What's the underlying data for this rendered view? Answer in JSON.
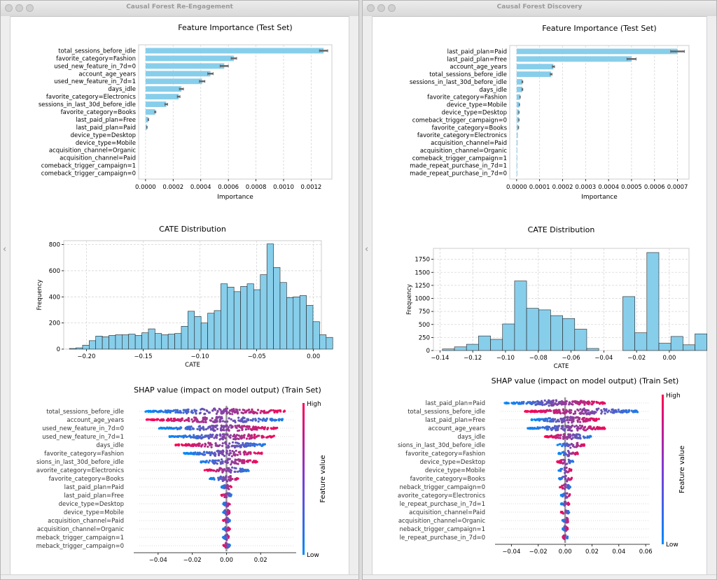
{
  "windows": [
    {
      "title": "Causal Forest Re-Engagement",
      "chart_data": [
        {
          "type": "bar",
          "orientation": "horizontal",
          "title": "Feature Importance (Test Set)",
          "xlabel": "Importance",
          "categories": [
            "total_sessions_before_idle",
            "favorite_category=Fashion",
            "used_new_feature_in_7d=0",
            "account_age_years",
            "used_new_feature_in_7d=1",
            "days_idle",
            "favorite_category=Electronics",
            "sessions_in_last_30d_before_idle",
            "favorite_category=Books",
            "last_paid_plan=Free",
            "last_paid_plan=Paid",
            "device_type=Desktop",
            "device_type=Mobile",
            "acquisition_channel=Organic",
            "acquisition_channel=Paid",
            "comeback_trigger_campaign=1",
            "comeback_trigger_campaign=0"
          ],
          "values": [
            0.00129,
            0.00064,
            0.00057,
            0.00047,
            0.00041,
            0.00026,
            0.00024,
            0.00015,
            7e-05,
            2e-05,
            1e-05,
            0,
            0,
            0,
            0,
            0,
            0
          ],
          "errors": [
            3e-05,
            2e-05,
            3e-05,
            2e-05,
            2e-05,
            1.5e-05,
            1e-05,
            1e-05,
            5e-06,
            3e-06,
            2e-06,
            0,
            0,
            0,
            0,
            0,
            0
          ],
          "xlim": [
            -5e-05,
            0.00135
          ],
          "xticks": [
            "0.0000",
            "0.0002",
            "0.0004",
            "0.0006",
            "0.0008",
            "0.0010",
            "0.0012"
          ],
          "xtick_values": [
            0,
            0.0002,
            0.0004,
            0.0006,
            0.0008,
            0.001,
            0.0012
          ],
          "grid": true,
          "color": "#87ceeb"
        },
        {
          "type": "histogram",
          "title": "CATE Distribution",
          "xlabel": "CATE",
          "ylabel": "Frequency",
          "bin_start": -0.215,
          "bin_width": 0.0058,
          "counts": [
            5,
            10,
            30,
            65,
            100,
            95,
            105,
            110,
            110,
            115,
            105,
            125,
            155,
            120,
            110,
            115,
            120,
            175,
            290,
            250,
            200,
            275,
            295,
            500,
            475,
            440,
            480,
            500,
            455,
            570,
            805,
            625,
            510,
            395,
            400,
            410,
            335,
            210,
            110,
            90
          ],
          "xlim": [
            -0.22,
            0.007
          ],
          "ylim": [
            0,
            830
          ],
          "xticks": [
            "−0.20",
            "−0.15",
            "−0.10",
            "−0.05",
            "0.00"
          ],
          "xtick_values": [
            -0.2,
            -0.15,
            -0.1,
            -0.05,
            0
          ],
          "yticks": [
            "0",
            "200",
            "400",
            "600",
            "800"
          ],
          "ytick_values": [
            0,
            200,
            400,
            600,
            800
          ],
          "grid": true,
          "color": "#87ceeb"
        },
        {
          "type": "scatter",
          "subtype": "beeswarm",
          "title": "SHAP value (impact on model output) (Train Set)",
          "features": [
            "total_sessions_before_idle",
            "account_age_years",
            "used_new_feature_in_7d=0",
            "used_new_feature_in_7d=1",
            "days_idle",
            "favorite_category=Fashion",
            "sions_in_last_30d_before_idle",
            "avorite_category=Electronics",
            "favorite_category=Books",
            "last_paid_plan=Paid",
            "last_paid_plan=Free",
            "device_type=Desktop",
            "device_type=Mobile",
            "acquisition_channel=Paid",
            "acquisition_channel=Organic",
            "meback_trigger_campaign=1",
            "meback_trigger_campaign=0"
          ],
          "ranges": [
            [
              -0.048,
              0.035
            ],
            [
              -0.047,
              0.033
            ],
            [
              -0.04,
              0.03
            ],
            [
              -0.034,
              0.028
            ],
            [
              -0.03,
              0.023
            ],
            [
              -0.025,
              0.022
            ],
            [
              -0.017,
              0.018
            ],
            [
              -0.013,
              0.013
            ],
            [
              -0.01,
              0.008
            ],
            [
              -0.003,
              0.003
            ],
            [
              -0.003,
              0.003
            ],
            [
              -0.002,
              0.002
            ],
            [
              -0.002,
              0.002
            ],
            [
              -0.002,
              0.002
            ],
            [
              -0.002,
              0.002
            ],
            [
              -0.002,
              0.002
            ],
            [
              -0.002,
              0.002
            ]
          ],
          "xlim": [
            -0.051,
            0.04
          ],
          "xticks": [
            "−0.04",
            "−0.02",
            "0.00",
            "0.02"
          ],
          "xtick_values": [
            -0.04,
            -0.02,
            0,
            0.02
          ],
          "colorbar": {
            "label": "Feature value",
            "high": "High",
            "low": "Low",
            "colors": [
              "#008bfb",
              "#ff0051"
            ]
          }
        }
      ]
    },
    {
      "title": "Causal Forest Discovery",
      "chart_data": [
        {
          "type": "bar",
          "orientation": "horizontal",
          "title": "Feature Importance (Test Set)",
          "xlabel": "Importance",
          "categories": [
            "last_paid_plan=Paid",
            "last_paid_plan=Free",
            "account_age_years",
            "total_sessions_before_idle",
            "sessions_in_last_30d_before_idle",
            "days_idle",
            "favorite_category=Fashion",
            "device_type=Mobile",
            "device_type=Desktop",
            "comeback_trigger_campaign=0",
            "favorite_category=Books",
            "favorite_category=Electronics",
            "acquisition_channel=Paid",
            "acquisition_channel=Organic",
            "comeback_trigger_campaign=1",
            "made_repeat_purchase_in_7d=1",
            "made_repeat_purchase_in_7d=0"
          ],
          "values": [
            0.0007,
            0.0005,
            0.00016,
            0.00015,
            2.5e-05,
            2.5e-05,
            1.5e-05,
            1.2e-05,
            1e-05,
            1e-05,
            8e-06,
            5e-06,
            4e-06,
            3e-06,
            2e-06,
            1e-06,
            1e-06
          ],
          "errors": [
            3e-05,
            2e-05,
            5e-06,
            4e-06,
            2e-06,
            2e-06,
            1e-06,
            1e-06,
            1e-06,
            1e-06,
            1e-06,
            0,
            0,
            0,
            0,
            0,
            0
          ],
          "xlim": [
            -3e-05,
            0.00075
          ],
          "xticks": [
            "0.0000",
            "0.0001",
            "0.0002",
            "0.0003",
            "0.0004",
            "0.0005",
            "0.0006",
            "0.0007"
          ],
          "xtick_values": [
            0,
            0.0001,
            0.0002,
            0.0003,
            0.0004,
            0.0005,
            0.0006,
            0.0007
          ],
          "grid": true,
          "color": "#87ceeb"
        },
        {
          "type": "histogram",
          "title": "CATE Distribution",
          "xlabel": "CATE",
          "ylabel": "Frequency",
          "bin_start": -0.1385,
          "bin_width": 0.00734,
          "counts": [
            30,
            70,
            120,
            280,
            215,
            510,
            1335,
            810,
            780,
            670,
            615,
            410,
            40,
            0,
            0,
            1035,
            340,
            1880,
            140,
            270,
            110,
            320
          ],
          "xlim": [
            -0.144,
            0.012
          ],
          "ylim": [
            0,
            1960
          ],
          "xticks": [
            "−0.14",
            "−0.12",
            "−0.10",
            "−0.08",
            "−0.06",
            "−0.04",
            "−0.02",
            "0.00"
          ],
          "xtick_values": [
            -0.14,
            -0.12,
            -0.1,
            -0.08,
            -0.06,
            -0.04,
            -0.02,
            0
          ],
          "yticks": [
            "0",
            "250",
            "500",
            "750",
            "1000",
            "1250",
            "1500",
            "1750"
          ],
          "ytick_values": [
            0,
            250,
            500,
            750,
            1000,
            1250,
            1500,
            1750
          ],
          "grid": true,
          "color": "#87ceeb"
        },
        {
          "type": "scatter",
          "subtype": "beeswarm",
          "title": "SHAP value (impact on model output) (Train Set)",
          "features": [
            "last_paid_plan=Paid",
            "total_sessions_before_idle",
            "last_paid_plan=Free",
            "account_age_years",
            "days_idle",
            "sions_in_last_30d_before_idle",
            "favorite_category=Fashion",
            "device_type=Desktop",
            "device_type=Mobile",
            "favorite_category=Books",
            "neback_trigger_campaign=0",
            "avorite_category=Electronics",
            "le_repeat_purchase_in_7d=1",
            "acquisition_channel=Paid",
            "acquisition_channel=Organic",
            "neback_trigger_campaign=1",
            "le_repeat_purchase_in_7d=0"
          ],
          "ranges": [
            [
              -0.045,
              0.03
            ],
            [
              -0.03,
              0.056
            ],
            [
              -0.025,
              0.026
            ],
            [
              -0.028,
              0.03
            ],
            [
              -0.015,
              0.02
            ],
            [
              -0.006,
              0.015
            ],
            [
              -0.005,
              0.01
            ],
            [
              -0.006,
              0.006
            ],
            [
              -0.005,
              0.005
            ],
            [
              -0.005,
              0.005
            ],
            [
              -0.004,
              0.004
            ],
            [
              -0.003,
              0.004
            ],
            [
              -0.003,
              0.003
            ],
            [
              -0.003,
              0.003
            ],
            [
              -0.002,
              0.003
            ],
            [
              -0.002,
              0.002
            ],
            [
              -0.002,
              0.002
            ]
          ],
          "xlim": [
            -0.048,
            0.062
          ],
          "xticks": [
            "−0.04",
            "−0.02",
            "0.00",
            "0.02",
            "0.04",
            "0.06"
          ],
          "xtick_values": [
            -0.04,
            -0.02,
            0,
            0.02,
            0.04,
            0.06
          ],
          "colorbar": {
            "label": "Feature value",
            "high": "High",
            "low": "Low",
            "colors": [
              "#008bfb",
              "#ff0051"
            ]
          }
        }
      ]
    }
  ]
}
